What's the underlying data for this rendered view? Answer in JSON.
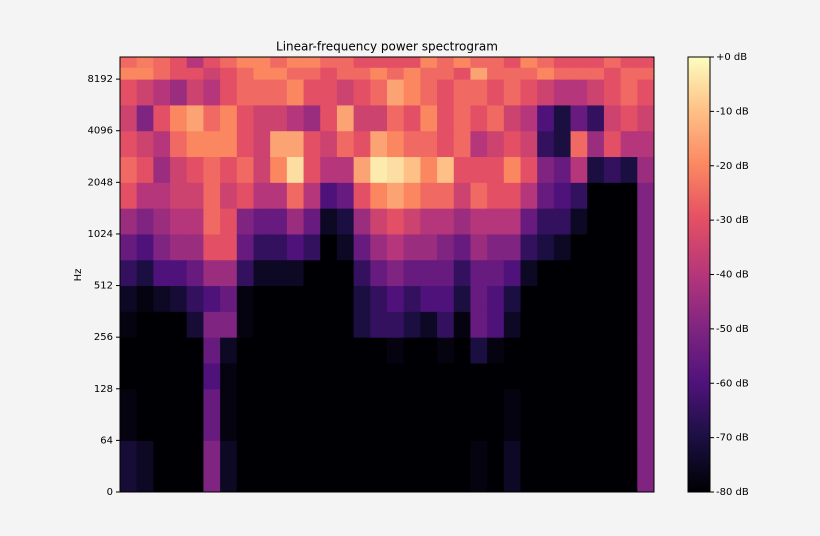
{
  "chart_data": {
    "type": "heatmap",
    "title": "Linear-frequency power spectrogram",
    "y_label": "Hz",
    "y_scale": "symlog",
    "linthresh": 64,
    "ylim": [
      0,
      11025
    ],
    "yticks": [
      0,
      64,
      128,
      256,
      512,
      1024,
      2048,
      4096,
      8192
    ],
    "y_edges": [
      0,
      64,
      128,
      181,
      256,
      362,
      512,
      724,
      1024,
      1448,
      2048,
      2896,
      4096,
      5793,
      8192,
      9600,
      11025
    ],
    "colormap": "magma",
    "zlim": [
      -80,
      0
    ],
    "zticks": [
      {
        "value": 0,
        "label": "+0 dB"
      },
      {
        "value": -10,
        "label": "-10 dB"
      },
      {
        "value": -20,
        "label": "-20 dB"
      },
      {
        "value": -30,
        "label": "-30 dB"
      },
      {
        "value": -40,
        "label": "-40 dB"
      },
      {
        "value": -50,
        "label": "-50 dB"
      },
      {
        "value": -60,
        "label": "-60 dB"
      },
      {
        "value": -70,
        "label": "-70 dB"
      },
      {
        "value": -80,
        "label": "-80 dB"
      }
    ],
    "values": [
      [
        -72,
        -78,
        -80,
        -80,
        -78,
        -75,
        -65,
        -55,
        -45,
        -30,
        -25,
        -30,
        -35,
        -30,
        -20,
        -25
      ],
      [
        -75,
        -80,
        -80,
        -80,
        -80,
        -78,
        -70,
        -60,
        -50,
        -40,
        -30,
        -35,
        -50,
        -35,
        -20,
        -22
      ],
      [
        -80,
        -80,
        -80,
        -80,
        -80,
        -75,
        -60,
        -50,
        -45,
        -40,
        -45,
        -40,
        -30,
        -40,
        -25,
        -25
      ],
      [
        -80,
        -80,
        -80,
        -80,
        -80,
        -72,
        -60,
        -45,
        -40,
        -35,
        -35,
        -25,
        -20,
        -45,
        -30,
        -30
      ],
      [
        -80,
        -80,
        -80,
        -80,
        -72,
        -65,
        -55,
        -45,
        -40,
        -35,
        -30,
        -20,
        -15,
        -35,
        -30,
        -40
      ],
      [
        -50,
        -55,
        -60,
        -55,
        -50,
        -60,
        -45,
        -30,
        -25,
        -25,
        -25,
        -20,
        -25,
        -40,
        -35,
        -30
      ],
      [
        -75,
        -78,
        -78,
        -75,
        -50,
        -55,
        -45,
        -30,
        -30,
        -35,
        -30,
        -20,
        -20,
        -30,
        -30,
        -25
      ],
      [
        -80,
        -80,
        -80,
        -80,
        -78,
        -78,
        -65,
        -55,
        -50,
        -30,
        -25,
        -30,
        -30,
        -25,
        -25,
        -20
      ],
      [
        -80,
        -80,
        -80,
        -80,
        -80,
        -80,
        -75,
        -65,
        -55,
        -40,
        -35,
        -35,
        -35,
        -25,
        -20,
        -20
      ],
      [
        -80,
        -80,
        -80,
        -80,
        -80,
        -80,
        -75,
        -65,
        -55,
        -40,
        -20,
        -15,
        -35,
        -25,
        -20,
        -25
      ],
      [
        -80,
        -80,
        -80,
        -80,
        -80,
        -80,
        -75,
        -60,
        -45,
        -25,
        -5,
        -15,
        -40,
        -20,
        -25,
        -20
      ],
      [
        -80,
        -80,
        -80,
        -80,
        -80,
        -80,
        -80,
        -65,
        -55,
        -40,
        -30,
        -30,
        -45,
        -30,
        -25,
        -20
      ],
      [
        -80,
        -80,
        -80,
        -80,
        -80,
        -80,
        -80,
        -80,
        -75,
        -60,
        -40,
        -35,
        -30,
        -30,
        -30,
        -25
      ],
      [
        -80,
        -80,
        -80,
        -80,
        -80,
        -80,
        -80,
        -75,
        -70,
        -55,
        -40,
        -25,
        -15,
        -35,
        -25,
        -25
      ],
      [
        -80,
        -80,
        -80,
        -80,
        -70,
        -70,
        -65,
        -55,
        -45,
        -30,
        -15,
        -30,
        -35,
        -30,
        -25,
        -30
      ],
      [
        -80,
        -80,
        -80,
        -80,
        -65,
        -65,
        -55,
        -45,
        -35,
        -20,
        -3,
        -15,
        -35,
        -25,
        -20,
        -30
      ],
      [
        -80,
        -80,
        -80,
        -78,
        -65,
        -60,
        -50,
        -40,
        -30,
        -15,
        -5,
        -20,
        -25,
        -15,
        -25,
        -30
      ],
      [
        -80,
        -80,
        -80,
        -80,
        -70,
        -65,
        -55,
        -45,
        -35,
        -20,
        -10,
        -25,
        -30,
        -20,
        -20,
        -30
      ],
      [
        -80,
        -80,
        -80,
        -80,
        -75,
        -60,
        -55,
        -45,
        -40,
        -25,
        -20,
        -25,
        -20,
        -25,
        -25,
        -20
      ],
      [
        -80,
        -80,
        -80,
        -78,
        -65,
        -60,
        -55,
        -50,
        -40,
        -25,
        -10,
        -30,
        -30,
        -30,
        -25,
        -25
      ],
      [
        -80,
        -80,
        -80,
        -80,
        -78,
        -70,
        -65,
        -55,
        -45,
        -35,
        -30,
        -25,
        -25,
        -25,
        -30,
        -20
      ],
      [
        -78,
        -80,
        -80,
        -70,
        -55,
        -55,
        -55,
        -45,
        -40,
        -25,
        -30,
        -40,
        -30,
        -25,
        -15,
        -25
      ],
      [
        -80,
        -80,
        -80,
        -78,
        -60,
        -60,
        -55,
        -50,
        -40,
        -30,
        -30,
        -35,
        -25,
        -30,
        -25,
        -25
      ],
      [
        -75,
        -78,
        -80,
        -80,
        -75,
        -70,
        -60,
        -50,
        -40,
        -30,
        -20,
        -30,
        -35,
        -25,
        -25,
        -30
      ],
      [
        -80,
        -80,
        -80,
        -80,
        -80,
        -80,
        -75,
        -65,
        -55,
        -40,
        -30,
        -35,
        -40,
        -30,
        -25,
        -20
      ],
      [
        -80,
        -80,
        -80,
        -80,
        -80,
        -80,
        -80,
        -70,
        -65,
        -55,
        -50,
        -65,
        -60,
        -35,
        -20,
        -25
      ],
      [
        -80,
        -80,
        -80,
        -80,
        -80,
        -80,
        -80,
        -75,
        -65,
        -60,
        -55,
        -70,
        -70,
        -40,
        -25,
        -30
      ],
      [
        -80,
        -80,
        -80,
        -80,
        -80,
        -80,
        -80,
        -80,
        -75,
        -65,
        -40,
        -25,
        -55,
        -40,
        -25,
        -30
      ],
      [
        -80,
        -80,
        -80,
        -80,
        -80,
        -80,
        -80,
        -80,
        -80,
        -80,
        -70,
        -45,
        -65,
        -35,
        -25,
        -30
      ],
      [
        -80,
        -80,
        -80,
        -80,
        -80,
        -80,
        -80,
        -80,
        -80,
        -80,
        -65,
        -30,
        -35,
        -30,
        -30,
        -25
      ],
      [
        -80,
        -80,
        -80,
        -80,
        -80,
        -80,
        -80,
        -80,
        -80,
        -80,
        -70,
        -40,
        -30,
        -25,
        -25,
        -30
      ],
      [
        -50,
        -50,
        -50,
        -50,
        -50,
        -50,
        -50,
        -50,
        -50,
        -50,
        -45,
        -40,
        -35,
        -30,
        -25,
        -30
      ]
    ]
  }
}
